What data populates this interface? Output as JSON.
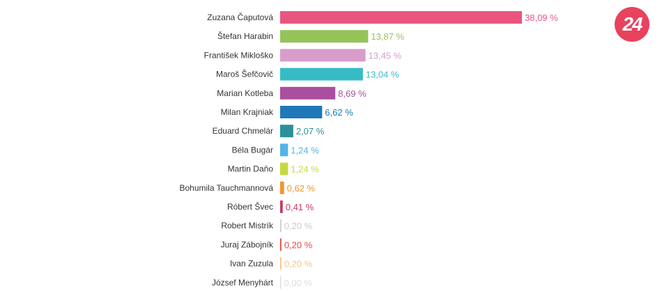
{
  "logo": {
    "text": "24",
    "color": "#e8425e"
  },
  "chart_data": {
    "type": "bar",
    "orientation": "horizontal",
    "value_suffix": " %",
    "categories": [
      "Zuzana Čaputová",
      "Štefan Harabin",
      "František Mikloško",
      "Maroš Šefčovič",
      "Marian Kotleba",
      "Milan Krajniak",
      "Eduard Chmelár",
      "Béla Bugár",
      "Martin Daňo",
      "Bohumila Tauchmannová",
      "Róbert Švec",
      "Robert Mistrík",
      "Juraj Zábojník",
      "Ivan Zuzula",
      "József Menyhárt"
    ],
    "values": [
      38.09,
      13.87,
      13.45,
      13.04,
      8.69,
      6.62,
      2.07,
      1.24,
      1.24,
      0.62,
      0.41,
      0.2,
      0.2,
      0.2,
      0.0
    ],
    "value_labels": [
      "38,09 %",
      "13,87 %",
      "13,45 %",
      "13,04 %",
      "8,69 %",
      "6,62 %",
      "2,07 %",
      "1,24 %",
      "1,24 %",
      "0,62 %",
      "0,41 %",
      "0,20 %",
      "0,20 %",
      "0,20 %",
      "0,00 %"
    ],
    "colors": [
      "#e8567f",
      "#95c35a",
      "#d99ccb",
      "#36bcc5",
      "#a94f9e",
      "#1f78b8",
      "#2a919a",
      "#52b4e8",
      "#c8d93f",
      "#f0962e",
      "#c9385d",
      "#cccccc",
      "#e34b43",
      "#f5c58c",
      "#dddddd"
    ],
    "xlim": [
      0,
      38.09
    ],
    "title": "",
    "xlabel": "",
    "ylabel": ""
  }
}
